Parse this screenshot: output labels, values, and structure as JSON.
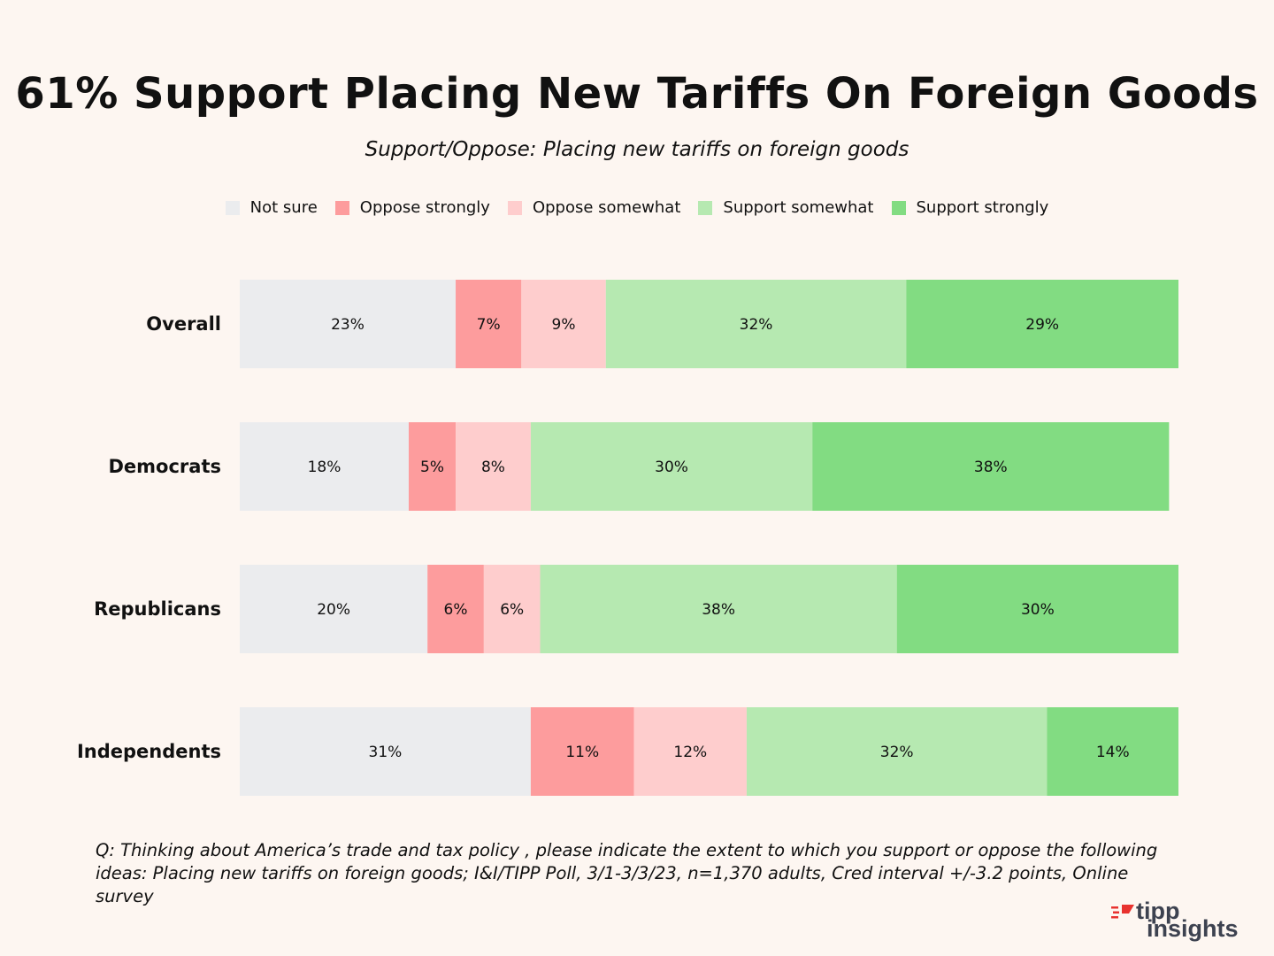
{
  "chart_data": {
    "type": "bar",
    "orientation": "horizontal",
    "stacked": true,
    "title": "61% Support Placing New Tariffs On Foreign Goods",
    "subtitle": "Support/Oppose: Placing new tariffs on foreign goods",
    "categories": [
      "Overall",
      "Democrats",
      "Republicans",
      "Independents"
    ],
    "series": [
      {
        "name": "Not sure",
        "color": "#ebecee",
        "values": [
          23,
          18,
          20,
          31
        ]
      },
      {
        "name": "Oppose strongly",
        "color": "#fd9c9d",
        "values": [
          7,
          5,
          6,
          11
        ]
      },
      {
        "name": "Oppose somewhat",
        "color": "#fecdcd",
        "values": [
          9,
          8,
          6,
          12
        ]
      },
      {
        "name": "Support somewhat",
        "color": "#b6e9b1",
        "values": [
          32,
          30,
          38,
          32
        ]
      },
      {
        "name": "Support strongly",
        "color": "#82dc82",
        "values": [
          29,
          38,
          30,
          14
        ]
      }
    ],
    "value_suffix": "%",
    "legend_position": "top-center",
    "xlim": [
      0,
      100
    ]
  },
  "footnote": "Q:  Thinking about America’s trade and tax policy , please indicate the extent to which you support or oppose the following ideas: Placing new tariffs on foreign goods; I&I/TIPP Poll, 3/1-3/3/23, n=1,370 adults, Cred interval +/-3.2 points, Online survey",
  "logo": {
    "line1": "tipp",
    "line2": "insights",
    "accent_color": "#e8322f"
  }
}
